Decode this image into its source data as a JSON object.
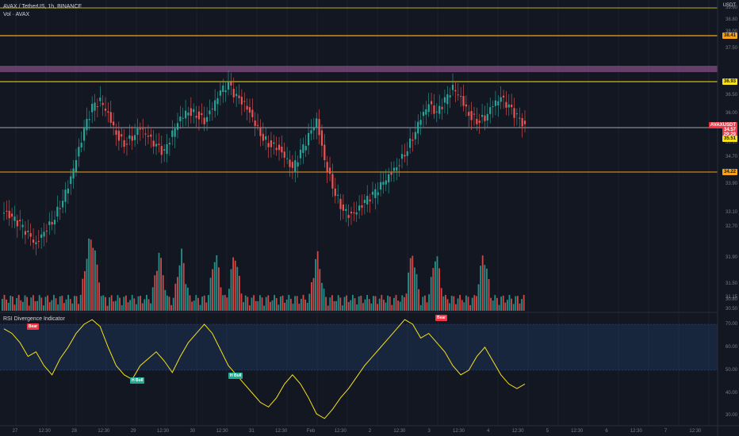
{
  "legend": {
    "symbol_line": "AVAX / TetherUS, 1h, BINANCE",
    "volume_line": "Vol · AVAX"
  },
  "price_axis": {
    "currency": "USDT",
    "ticks": [
      "39.60",
      "38.80",
      "38.00",
      "37.50",
      "36.50",
      "36.00",
      "35.10",
      "34.70",
      "33.90",
      "33.10",
      "32.70",
      "31.90",
      "31.50",
      "31.15",
      "30.80",
      "30.50"
    ],
    "tags": [
      {
        "label": "38.41",
        "color": "#f7a21b"
      },
      {
        "label": "36.93",
        "color": "#f7e11b"
      },
      {
        "label": "AVAXUSDT",
        "color": "#f23645"
      },
      {
        "label": "34.57",
        "color": "#f23645"
      },
      {
        "label": "29:29",
        "color": "#f23645"
      },
      {
        "label": "35.51",
        "color": "#f7e11b"
      },
      {
        "label": "34.22",
        "color": "#f7a21b"
      }
    ]
  },
  "rsi_panel": {
    "title": "RSI Divergence Indicator",
    "ticks": [
      "70.00",
      "60.00",
      "50.00",
      "40.00",
      "30.00"
    ],
    "signals": [
      {
        "label": "Bear",
        "type": "bear"
      },
      {
        "label": "Bear",
        "type": "bear"
      },
      {
        "label": "H Bull",
        "type": "bull"
      },
      {
        "label": "H Bull",
        "type": "bull"
      }
    ]
  },
  "time_axis": [
    "27",
    "12:30",
    "28",
    "12:30",
    "29",
    "12:30",
    "30",
    "12:30",
    "31",
    "12:30",
    "Feb",
    "12:30",
    "2",
    "12:30",
    "3",
    "12:30",
    "4",
    "12:30",
    "5",
    "12:30",
    "6",
    "12:30",
    "7",
    "12:30"
  ],
  "colors": {
    "up": "#26a69a",
    "down": "#ef5350",
    "orange": "#f7a21b",
    "yellow": "#f7e11b",
    "purple_zone": "#7b4a7a",
    "rsi_line": "#f7e11b"
  },
  "chart_data": {
    "type": "candlestick",
    "title": "AVAX / TetherUS, 1h, BINANCE",
    "closes_path": [
      33.0,
      32.8,
      32.6,
      32.3,
      32.0,
      32.4,
      32.7,
      33.2,
      33.8,
      34.6,
      35.5,
      36.2,
      36.4,
      36.0,
      35.4,
      35.1,
      35.3,
      35.6,
      35.3,
      35.0,
      34.8,
      35.4,
      35.9,
      36.1,
      36.0,
      35.8,
      36.2,
      36.7,
      36.9,
      36.5,
      36.3,
      35.9,
      35.4,
      35.1,
      35.0,
      34.7,
      34.3,
      34.8,
      35.3,
      35.8,
      34.6,
      33.8,
      33.2,
      32.9,
      33.0,
      33.3,
      33.5,
      33.8,
      34.1,
      34.4,
      34.8,
      35.3,
      35.9,
      36.3,
      36.0,
      36.4,
      36.8,
      36.5,
      36.0,
      35.8,
      35.9,
      36.3,
      36.5,
      36.2,
      35.9,
      35.6
    ],
    "horizontal_levels": [
      38.41,
      36.93,
      35.51,
      34.22
    ],
    "current_price": 34.57,
    "volume_peaks": true,
    "rsi_values": [
      68,
      66,
      62,
      56,
      58,
      52,
      48,
      55,
      60,
      66,
      70,
      72,
      69,
      60,
      52,
      48,
      46,
      52,
      55,
      58,
      54,
      49,
      56,
      62,
      66,
      70,
      66,
      59,
      52,
      48,
      44,
      40,
      36,
      34,
      38,
      44,
      48,
      44,
      38,
      31,
      29,
      33,
      38,
      42,
      47,
      52,
      56,
      60,
      64,
      68,
      72,
      70,
      64,
      66,
      62,
      58,
      52,
      48,
      50,
      56,
      60,
      54,
      48,
      44,
      42,
      44
    ]
  }
}
